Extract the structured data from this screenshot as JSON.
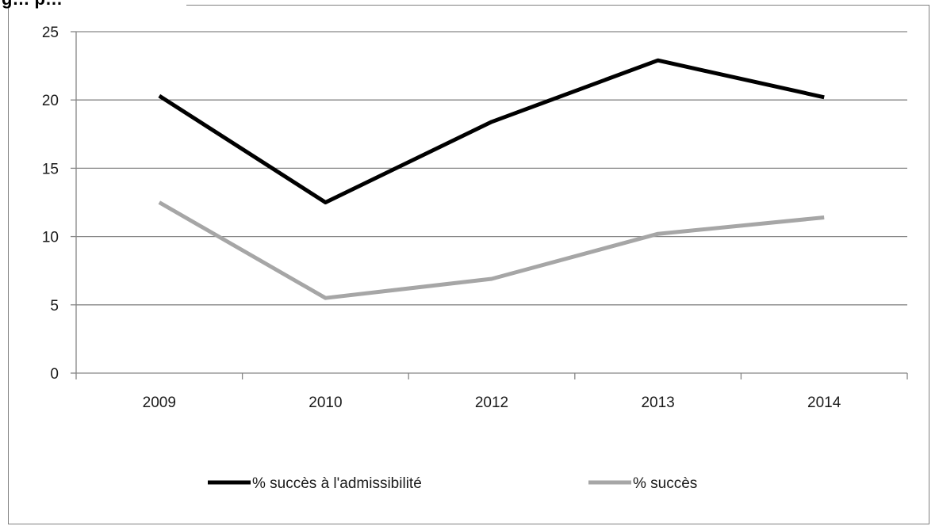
{
  "title_fragment": "g… p…",
  "chart_data": {
    "type": "line",
    "title": "",
    "xlabel": "",
    "ylabel": "",
    "categories": [
      "2009",
      "2010",
      "2012",
      "2013",
      "2014"
    ],
    "ylim": [
      0,
      25
    ],
    "yticks": [
      0,
      5,
      10,
      15,
      20,
      25
    ],
    "grid": true,
    "legend_position": "bottom",
    "series": [
      {
        "name": "% succès à l'admissibilité",
        "color": "#000000",
        "values": [
          20.3,
          12.5,
          18.4,
          22.9,
          20.2
        ]
      },
      {
        "name": "% succès",
        "color": "#a6a6a6",
        "values": [
          12.5,
          5.5,
          6.9,
          10.2,
          11.4
        ]
      }
    ]
  }
}
